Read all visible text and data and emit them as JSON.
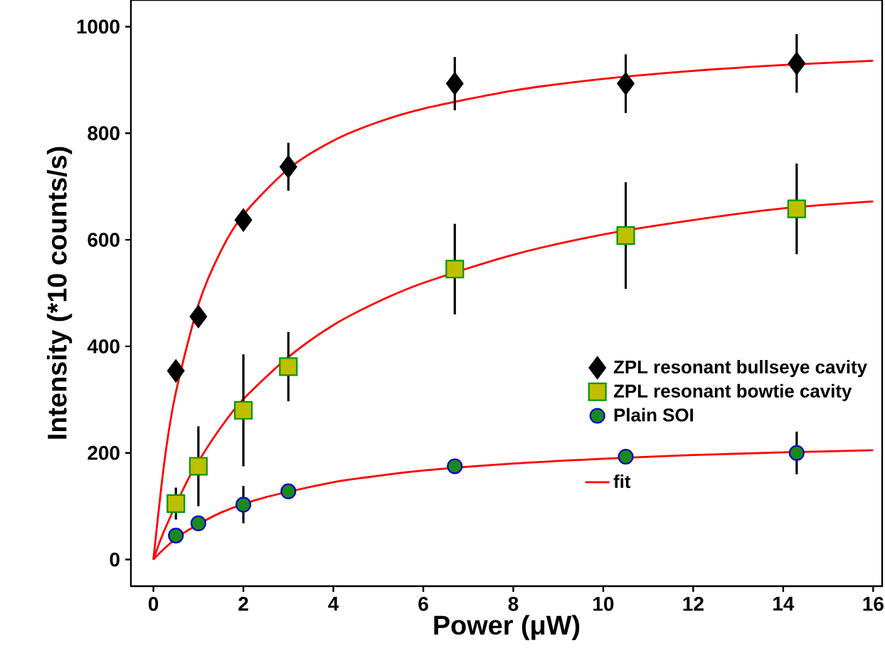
{
  "chart_data": {
    "type": "scatter",
    "xlabel": "Power (μW)",
    "ylabel": "Intensity (*10 counts/s)",
    "xlim": [
      -0.5,
      16.2
    ],
    "ylim": [
      -50,
      1050
    ],
    "xticks": [
      0,
      2,
      4,
      6,
      8,
      10,
      12,
      14,
      16
    ],
    "yticks": [
      0,
      200,
      400,
      600,
      800,
      1000
    ],
    "legend": "right",
    "grid": false,
    "series": [
      {
        "name": "ZPL resonant bullseye cavity",
        "color": "#000000",
        "marker": "diamond",
        "x": [
          0.5,
          1,
          2,
          3,
          6.7,
          10.5,
          14.3
        ],
        "values": [
          354,
          456,
          637,
          737,
          893,
          893,
          931
        ],
        "errors": [
          null,
          null,
          null,
          45,
          50,
          55,
          55
        ]
      },
      {
        "name": "ZPL resonant bowtie cavity",
        "color": "#bfbf00",
        "marker": "square",
        "x": [
          0.5,
          1,
          2,
          3,
          6.7,
          10.5,
          14.3
        ],
        "values": [
          105,
          175,
          280,
          362,
          545,
          608,
          658
        ],
        "errors": [
          30,
          75,
          105,
          65,
          85,
          100,
          85
        ]
      },
      {
        "name": "Plain SOI",
        "color": "#1a8a1a",
        "marker": "circle",
        "x": [
          0.5,
          1,
          2,
          3,
          6.7,
          10.5,
          14.3
        ],
        "values": [
          45,
          68,
          103,
          128,
          175,
          193,
          200
        ],
        "errors": [
          null,
          null,
          35,
          null,
          null,
          null,
          40
        ]
      },
      {
        "type": "line",
        "color": "#ff0000",
        "marker": "none",
        "x": [
          0,
          0.25,
          0.5,
          1,
          1.5,
          2,
          3,
          4,
          5,
          6,
          8,
          10,
          12,
          14,
          16
        ],
        "values": [
          0,
          187,
          314,
          478,
          579,
          647,
          733,
          786,
          821,
          846,
          880,
          902,
          917,
          928,
          936
        ]
      },
      {
        "type": "line",
        "color": "#ff0000",
        "marker": "none",
        "x": [
          0,
          0.25,
          0.75,
          1,
          1.5,
          2,
          3,
          4,
          5,
          6,
          8,
          10,
          12,
          14,
          16
        ],
        "values": [
          0,
          56,
          147,
          184,
          248,
          301,
          380,
          440,
          484,
          519,
          572,
          610,
          637,
          659,
          672
        ]
      },
      {
        "name": "fit",
        "type": "line",
        "color": "#ff0000",
        "marker": "none",
        "x": [
          0,
          0.25,
          0.5,
          0.75,
          1.5,
          2.5,
          4,
          5,
          6,
          8,
          10,
          12,
          14,
          16
        ],
        "values": [
          0,
          21,
          39,
          54,
          88,
          117,
          145,
          157,
          167,
          180,
          189,
          196,
          201,
          205
        ]
      }
    ]
  }
}
